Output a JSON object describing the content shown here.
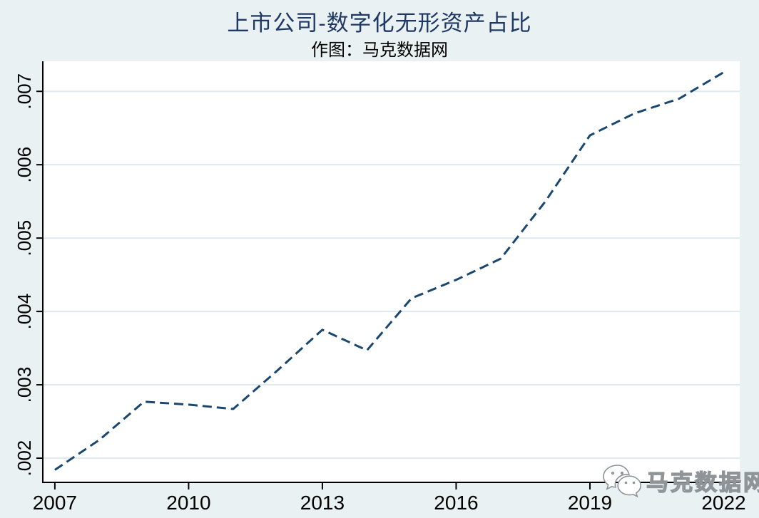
{
  "chart_data": {
    "type": "line",
    "title": "上市公司-数字化无形资产占比",
    "subtitle": "作图：马克数据网",
    "series_name": "数字化无形资产占比",
    "line_style": "dashed",
    "x": [
      2007,
      2008,
      2009,
      2010,
      2011,
      2012,
      2013,
      2014,
      2015,
      2016,
      2017,
      2018,
      2019,
      2020,
      2021,
      2022
    ],
    "values": [
      0.00184,
      0.00225,
      0.00277,
      0.00273,
      0.00267,
      0.0032,
      0.00375,
      0.00347,
      0.00418,
      0.00443,
      0.00472,
      0.0055,
      0.0064,
      0.0067,
      0.0069,
      0.00726
    ],
    "xlabel": "",
    "ylabel": "",
    "xlim": [
      2006.73,
      2022.36
    ],
    "ylim": [
      0.00167,
      0.00741
    ],
    "x_ticks": [
      2007,
      2010,
      2013,
      2016,
      2019,
      2022
    ],
    "y_ticks": [
      {
        "value": 0.002,
        "label": ".002"
      },
      {
        "value": 0.003,
        "label": ".003"
      },
      {
        "value": 0.004,
        "label": ".004"
      },
      {
        "value": 0.005,
        "label": ".005"
      },
      {
        "value": 0.006,
        "label": ".006"
      },
      {
        "value": 0.007,
        "label": ".007"
      }
    ],
    "grid": "horizontal",
    "legend": "none"
  },
  "colors": {
    "background": "#eaf1f3",
    "plot_background": "#ffffff",
    "gridline": "#dfeaee",
    "axis": "#000000",
    "line": "#1a476f",
    "title": "#1f3864",
    "tick_label": "#000000"
  },
  "watermark": {
    "icon": "wechat-icon",
    "text": "马克数据网"
  }
}
